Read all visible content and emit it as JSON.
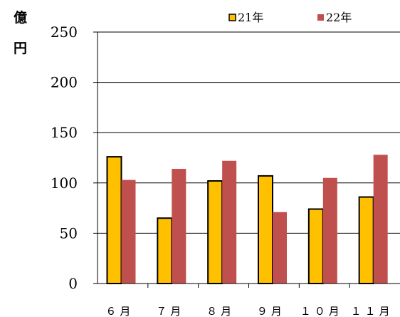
{
  "chart_data": {
    "type": "bar",
    "unit_label": [
      "億",
      "円"
    ],
    "categories": [
      "６月",
      "７月",
      "８月",
      "９月",
      "１０月",
      "１１月"
    ],
    "series": [
      {
        "name": "21年",
        "values": [
          126,
          65,
          102,
          107,
          74,
          86
        ],
        "color": "#FFC000",
        "stroke": "#000000"
      },
      {
        "name": "22年",
        "values": [
          103,
          114,
          122,
          71,
          105,
          128
        ],
        "color": "#C0504D",
        "stroke": "none"
      }
    ],
    "yticks": [
      0,
      50,
      100,
      150,
      200,
      250
    ],
    "ylim": [
      0,
      250
    ],
    "grid": true,
    "legend_position": "top-right"
  }
}
